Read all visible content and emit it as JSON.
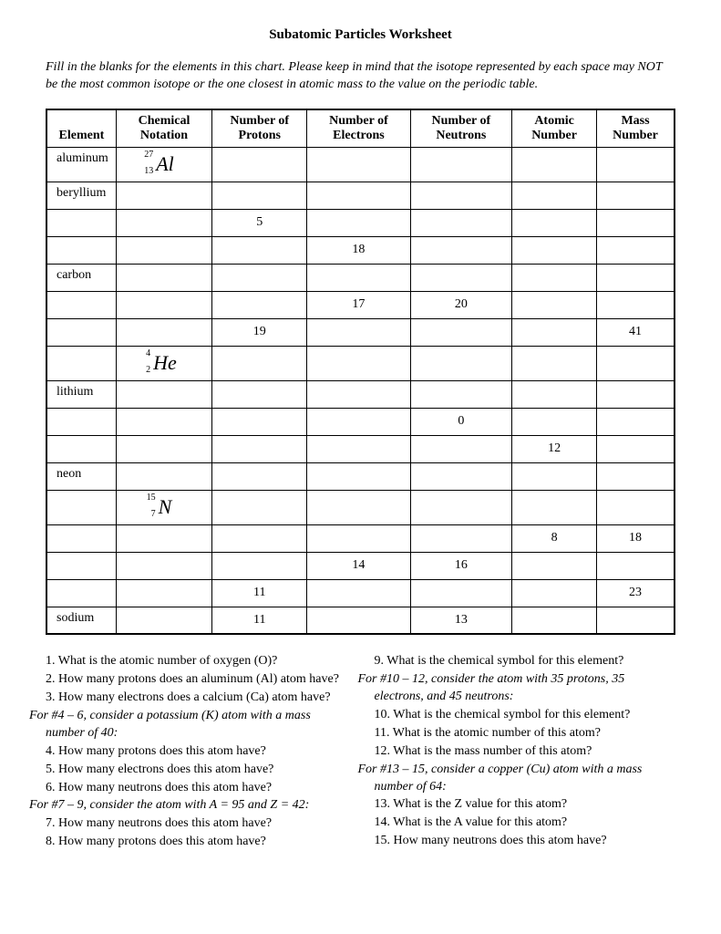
{
  "title": "Subatomic Particles Worksheet",
  "instructions": "Fill in the blanks for the elements in this chart. Please keep in mind that the isotope represented by each space may NOT be the most common isotope or the one closest in atomic mass to the value on the periodic table.",
  "columns": [
    "Element",
    "Chemical Notation",
    "Number of Protons",
    "Number of Electrons",
    "Number of Neutrons",
    "Atomic Number",
    "Mass Number"
  ],
  "rows": [
    {
      "element": "aluminum",
      "notation": {
        "mass": "27",
        "z": "13",
        "sym": "Al"
      },
      "protons": "",
      "electrons": "",
      "neutrons": "",
      "atomic": "",
      "massnum": "",
      "tall": true
    },
    {
      "element": "beryllium",
      "notation": null,
      "protons": "",
      "electrons": "",
      "neutrons": "",
      "atomic": "",
      "massnum": ""
    },
    {
      "element": "",
      "notation": null,
      "protons": "5",
      "electrons": "",
      "neutrons": "",
      "atomic": "",
      "massnum": ""
    },
    {
      "element": "",
      "notation": null,
      "protons": "",
      "electrons": "18",
      "neutrons": "",
      "atomic": "",
      "massnum": ""
    },
    {
      "element": "carbon",
      "notation": null,
      "protons": "",
      "electrons": "",
      "neutrons": "",
      "atomic": "",
      "massnum": ""
    },
    {
      "element": "",
      "notation": null,
      "protons": "",
      "electrons": "17",
      "neutrons": "20",
      "atomic": "",
      "massnum": ""
    },
    {
      "element": "",
      "notation": null,
      "protons": "19",
      "electrons": "",
      "neutrons": "",
      "atomic": "",
      "massnum": "41"
    },
    {
      "element": "",
      "notation": {
        "mass": "4",
        "z": "2",
        "sym": "He"
      },
      "protons": "",
      "electrons": "",
      "neutrons": "",
      "atomic": "",
      "massnum": "",
      "tall": true
    },
    {
      "element": "lithium",
      "notation": null,
      "protons": "",
      "electrons": "",
      "neutrons": "",
      "atomic": "",
      "massnum": ""
    },
    {
      "element": "",
      "notation": null,
      "protons": "",
      "electrons": "",
      "neutrons": "0",
      "atomic": "",
      "massnum": ""
    },
    {
      "element": "",
      "notation": null,
      "protons": "",
      "electrons": "",
      "neutrons": "",
      "atomic": "12",
      "massnum": ""
    },
    {
      "element": "neon",
      "notation": null,
      "protons": "",
      "electrons": "",
      "neutrons": "",
      "atomic": "",
      "massnum": ""
    },
    {
      "element": "",
      "notation": {
        "mass": "15",
        "z": "7",
        "sym": "N"
      },
      "protons": "",
      "electrons": "",
      "neutrons": "",
      "atomic": "",
      "massnum": "",
      "tall": true
    },
    {
      "element": "",
      "notation": null,
      "protons": "",
      "electrons": "",
      "neutrons": "",
      "atomic": "8",
      "massnum": "18"
    },
    {
      "element": "",
      "notation": null,
      "protons": "",
      "electrons": "14",
      "neutrons": "16",
      "atomic": "",
      "massnum": ""
    },
    {
      "element": "",
      "notation": null,
      "protons": "11",
      "electrons": "",
      "neutrons": "",
      "atomic": "",
      "massnum": "23"
    },
    {
      "element": "sodium",
      "notation": null,
      "protons": "11",
      "electrons": "",
      "neutrons": "13",
      "atomic": "",
      "massnum": ""
    }
  ],
  "questions_left": [
    {
      "type": "q",
      "text": "1. What is the atomic number of oxygen (O)?"
    },
    {
      "type": "q",
      "text": "2.  How many protons does an aluminum (Al) atom have?"
    },
    {
      "type": "q",
      "text": "3.  How many electrons does a calcium (Ca) atom have?"
    },
    {
      "type": "note",
      "text": "For #4 – 6, consider a potassium (K) atom with a mass number of 40:"
    },
    {
      "type": "q",
      "text": "4.  How many protons does this atom have?"
    },
    {
      "type": "q",
      "text": "5.  How many electrons does this atom have?"
    },
    {
      "type": "q",
      "text": "6.  How many neutrons does this atom have?"
    },
    {
      "type": "note",
      "text": "For #7 – 9, consider the atom with A = 95 and Z = 42:"
    },
    {
      "type": "q",
      "text": "7.  How many neutrons does this atom have?"
    },
    {
      "type": "q",
      "text": "8.  How many protons does this atom have?"
    }
  ],
  "questions_right": [
    {
      "type": "q",
      "text": "9.  What is the chemical symbol for this element?"
    },
    {
      "type": "note",
      "text": "For #10 – 12, consider the atom with 35 protons, 35 electrons, and 45 neutrons:"
    },
    {
      "type": "q",
      "text": "10.  What is the chemical symbol for this element?"
    },
    {
      "type": "q",
      "text": "11.  What is the atomic number of this atom?"
    },
    {
      "type": "q",
      "text": "12.  What is the mass number of this atom?"
    },
    {
      "type": "note",
      "text": "For #13 – 15, consider a copper (Cu) atom with a mass number of 64:"
    },
    {
      "type": "q",
      "text": "13.  What is the Z value for this atom?"
    },
    {
      "type": "q",
      "text": "14.  What is the A value for this atom?"
    },
    {
      "type": "q",
      "text": "15.  How many neutrons does this atom have?"
    }
  ]
}
